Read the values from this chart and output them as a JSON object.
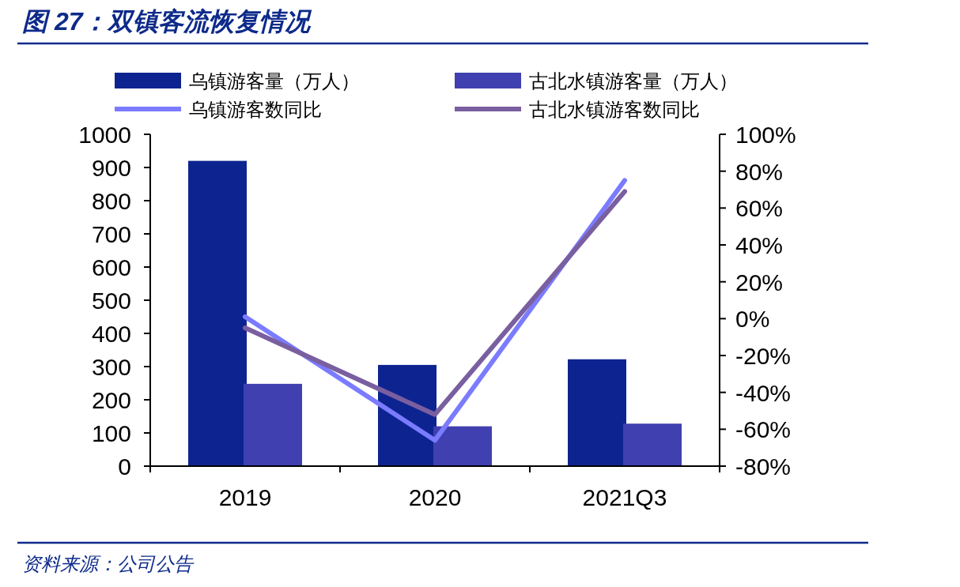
{
  "chart_data": {
    "type": "bar",
    "title": "图 27：双镇客流恢复情况",
    "annotations": [
      "资料来源：公司公告"
    ],
    "categories": [
      "2019",
      "2020",
      "2021Q3"
    ],
    "series": [
      {
        "name": "乌镇游客量（万人）",
        "color": "#0d2490",
        "values": [
          920,
          305,
          322
        ]
      },
      {
        "name": "古北水镇游客量（万人）",
        "color": "#4040b0",
        "values": [
          248,
          120,
          128
        ]
      },
      {
        "name": "乌镇游客数同比",
        "type": "line",
        "axis": "y2",
        "color": "#7b7bff",
        "values": [
          1,
          -66,
          75
        ]
      },
      {
        "name": "古北水镇游客数同比",
        "type": "line",
        "axis": "y2",
        "color": "#7a5fa0",
        "values": [
          -5,
          -52,
          69
        ]
      }
    ],
    "ylim": [
      0,
      1000
    ],
    "yticks": [
      0,
      100,
      200,
      300,
      400,
      500,
      600,
      700,
      800,
      900,
      1000
    ],
    "y2lim": [
      -80,
      100
    ],
    "y2ticks": [
      {
        "value": -80,
        "label": "-80%"
      },
      {
        "value": -60,
        "label": "-60%"
      },
      {
        "value": -40,
        "label": "-40%"
      },
      {
        "value": -20,
        "label": "-20%"
      },
      {
        "value": 0,
        "label": "0%"
      },
      {
        "value": 20,
        "label": "20%"
      },
      {
        "value": 40,
        "label": "40%"
      },
      {
        "value": 60,
        "label": "60%"
      },
      {
        "value": 80,
        "label": "80%"
      },
      {
        "value": 100,
        "label": "100%"
      }
    ],
    "legend": "top"
  }
}
